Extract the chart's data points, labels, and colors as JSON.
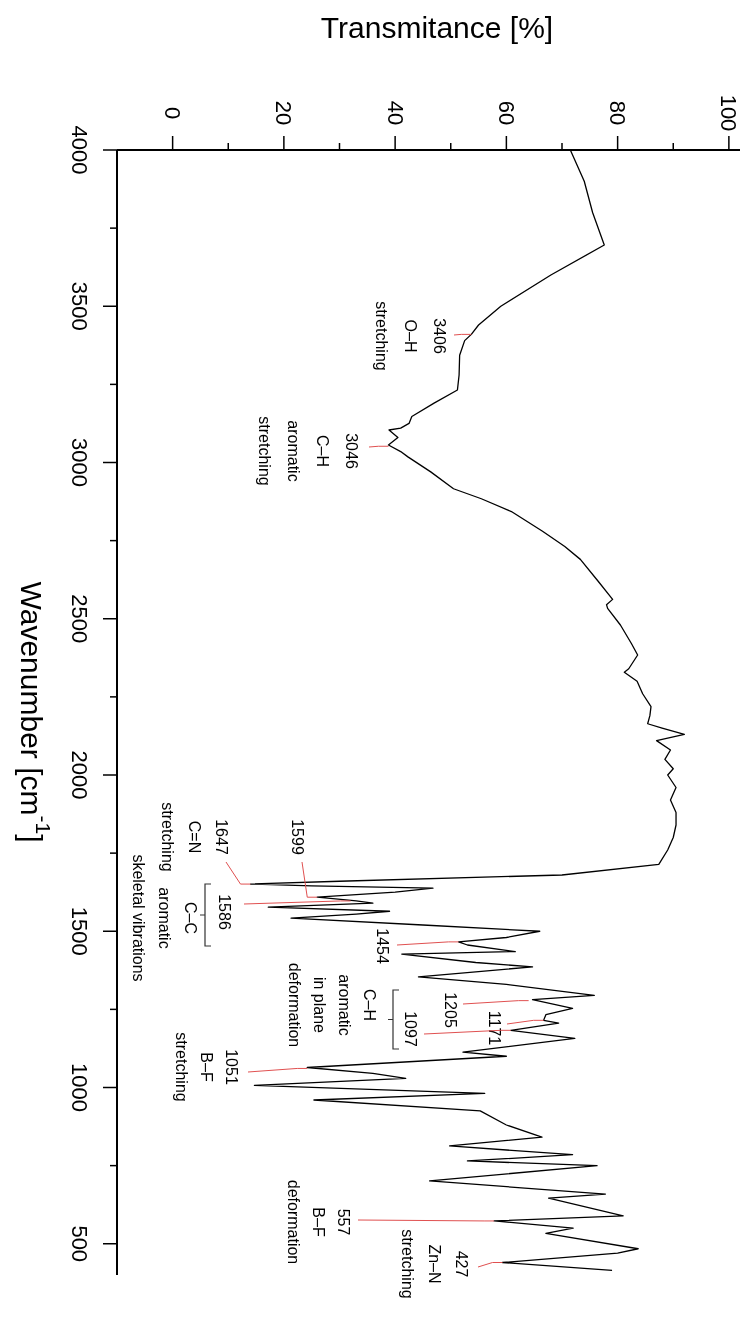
{
  "chart_data": {
    "type": "line",
    "ylabel": "Wavenumber [cm$^{-1}$]",
    "xlabel": "Transmitance [%]",
    "ylim": [
      400,
      4000
    ],
    "yticks": [
      4000,
      {
        "value": 3750,
        "label": null
      },
      3500,
      {
        "value": 3250,
        "label": null
      },
      3000,
      {
        "value": 2750,
        "label": null
      },
      2500,
      {
        "value": 2250,
        "label": null
      },
      2000,
      {
        "value": 1750,
        "label": null
      },
      1500,
      {
        "value": 1250,
        "label": null
      },
      1000,
      {
        "value": 750,
        "label": null
      },
      500
    ],
    "xlim": [
      -10,
      102
    ],
    "xticks": [
      0,
      {
        "value": 10,
        "label": null
      },
      20,
      {
        "value": 30,
        "label": null
      },
      40,
      {
        "value": 50,
        "label": null
      },
      60,
      {
        "value": 70,
        "label": null
      },
      80,
      {
        "value": 90,
        "label": null
      },
      100
    ],
    "series": [
      {
        "color": "#000000",
        "values": [
          4000,
          3900,
          3800,
          3696,
          3600,
          3500,
          3440,
          3410,
          3390,
          3343,
          3280,
          3232,
          3190,
          3147,
          3125,
          3110,
          3104,
          3080,
          3056,
          3035,
          3018,
          2970,
          2916,
          2884,
          2843,
          2780,
          2731,
          2690,
          2620,
          2562,
          2545,
          2533,
          2480,
          2420,
          2384,
          2340,
          2329,
          2300,
          2260,
          2219,
          2190,
          2164,
          2150,
          2130,
          2110,
          2080,
          2050,
          2020,
          2000,
          1960,
          1920,
          1880,
          1840,
          1800,
          1760,
          1714,
          1680,
          1660,
          1651,
          1645,
          1638,
          1625,
          1609,
          1597,
          1590,
          1577,
          1564,
          1555,
          1542,
          1520,
          1500,
          1480,
          1466,
          1456,
          1435,
          1427,
          1400,
          1386,
          1354,
          1330,
          1295,
          1281,
          1253,
          1233,
          1215,
          1206,
          1183,
          1157,
          1113,
          1100,
          1064,
          1045,
          1029,
          1007,
          981,
          960,
          925,
          880,
          841,
          813,
          785,
          765,
          750,
          701,
          659,
          646,
          589,
          573,
          550,
          533,
          484,
          470,
          440,
          415
        ],
        "x": [
          71.5,
          74,
          75.5,
          77.6,
          68,
          59,
          55,
          53.7,
          52.5,
          51.6,
          51.5,
          51.2,
          47,
          43,
          42.5,
          41,
          38.9,
          40.5,
          38.8,
          41,
          42.3,
          46.4,
          50.5,
          55.5,
          60.9,
          66.5,
          70.5,
          73.3,
          76.5,
          79.1,
          78,
          78.2,
          80.5,
          82.5,
          83.6,
          82,
          81.2,
          83.5,
          84.5,
          86,
          85.8,
          85.4,
          88,
          92,
          87,
          89.5,
          88.5,
          90,
          89,
          90.5,
          89.5,
          90.5,
          90.5,
          90,
          89,
          87.4,
          70,
          30,
          14,
          25,
          46.8,
          40,
          26,
          33,
          36,
          17.2,
          39,
          33,
          21.3,
          45,
          66,
          60,
          51.4,
          53,
          61.6,
          41.2,
          54.5,
          64.7,
          44.2,
          60,
          75.8,
          64.7,
          71.9,
          67.1,
          66.7,
          69.4,
          60.8,
          72.3,
          52.2,
          60,
          24.2,
          36,
          41.9,
          14.7,
          56.1,
          25.4,
          55.3,
          60,
          66.4,
          49.8,
          71.9,
          53,
          76.3,
          46.2,
          77.8,
          67.6,
          81,
          57.8,
          72,
          67.1,
          83.7,
          80,
          59.3,
          79
        ]
      }
    ],
    "annotations": [
      {
        "text": "3406\nO–H\nstretching",
        "y": 3410,
        "x": 53.7
      },
      {
        "text": "3046\nC–H\naromatic\nstretching",
        "y": 3052,
        "x": 38.8
      },
      {
        "text": "1647\nC=N\nstretching",
        "y": 1651,
        "x": 14
      },
      {
        "text": "1599",
        "y": 1609,
        "x": 26
      },
      {
        "text": "1586",
        "y": 1597,
        "x": 32
      },
      "C–C\naromatic\nskeletal vibrations",
      {
        "text": "1454",
        "y": 1466,
        "x": 51.4
      },
      "C–H\naromatic\nin plane\ndeformation",
      {
        "text": "1205",
        "y": 1278,
        "x": 64
      },
      {
        "text": "1171",
        "y": 1215,
        "x": 66.7
      },
      {
        "text": "1097",
        "y": 1183,
        "x": 60.8
      },
      {
        "text": "1051\nB–F\nstretching",
        "y": 1061,
        "x": 24.2
      },
      {
        "text": "557\nB–F\ndeformation",
        "y": 573,
        "x": 57.8
      },
      {
        "text": "427\nZn–N\nstretching",
        "y": 440,
        "x": 59.3
      }
    ]
  }
}
